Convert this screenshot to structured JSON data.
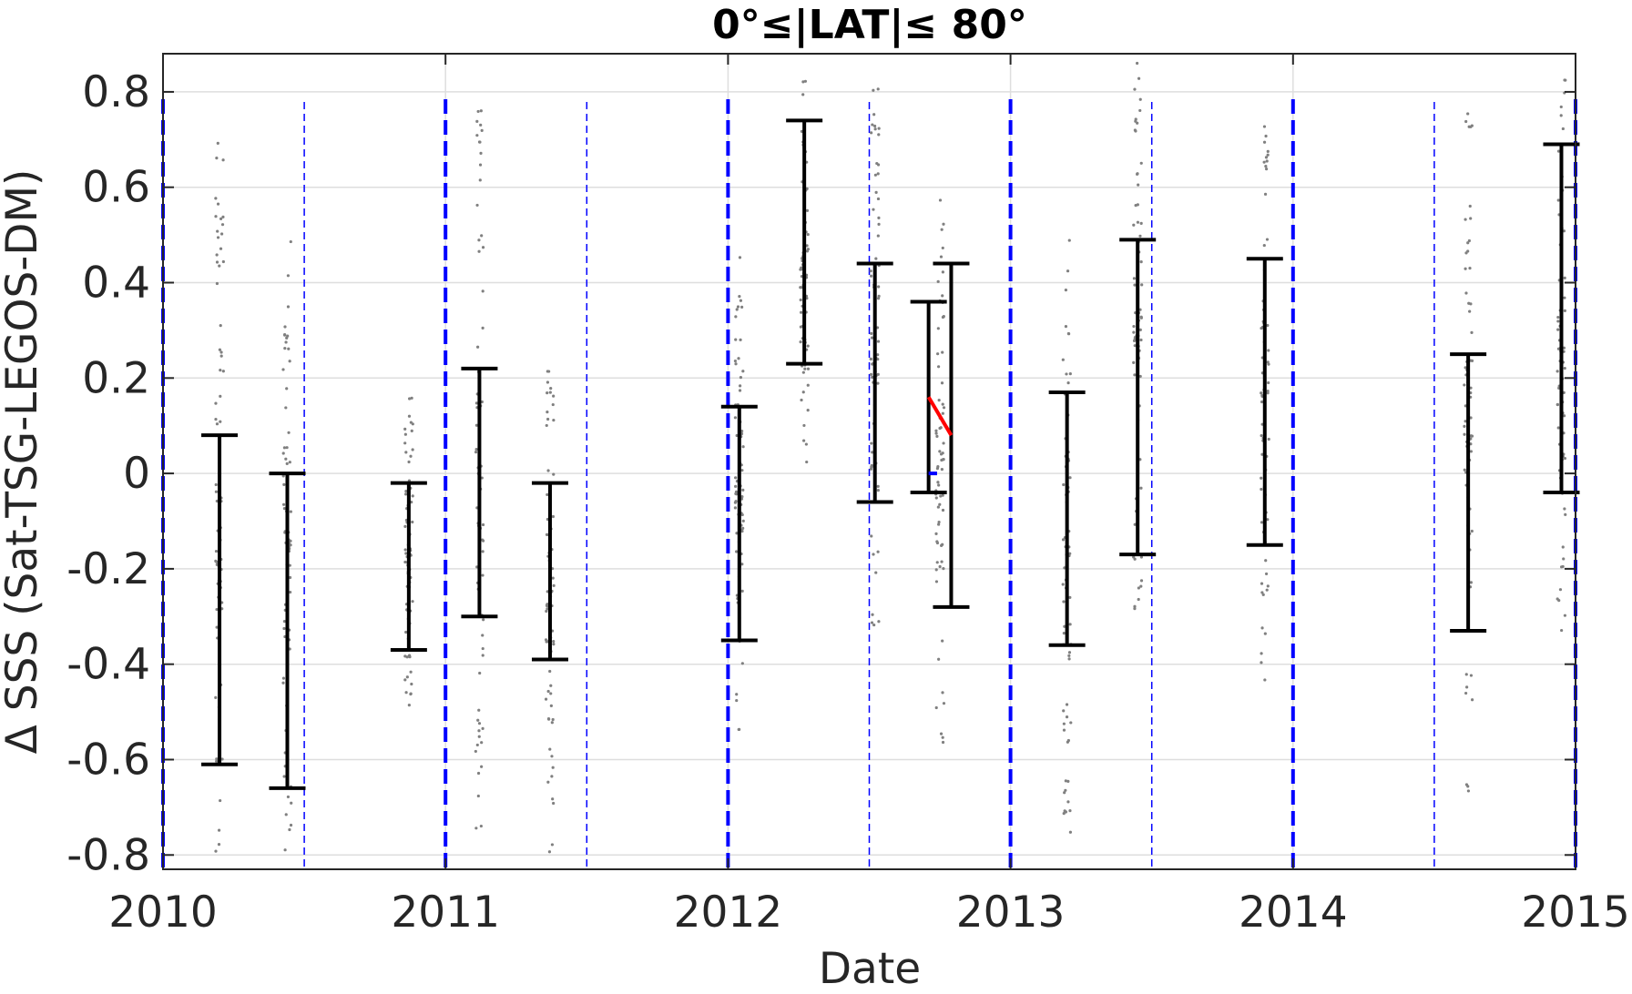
{
  "chart_data": {
    "type": "scatter",
    "title": "0°≤|LAT|≤ 80°",
    "xlabel": "Date",
    "ylabel": "Δ SSS (Sat-TSG-LEGOS-DM)",
    "xlim": [
      2010,
      2015
    ],
    "ylim": [
      -0.83,
      0.88
    ],
    "x_ticks": [
      "2010",
      "2011",
      "2012",
      "2013",
      "2014",
      "2015"
    ],
    "y_ticks": [
      "-0.8",
      "-0.6",
      "-0.4",
      "-0.2",
      "0",
      "0.2",
      "0.4",
      "0.6",
      "0.8"
    ],
    "grid": true,
    "year_lines": [
      2010,
      2011,
      2012,
      2013,
      2014,
      2015
    ],
    "half_year_lines": [
      2010.5,
      2011.5,
      2012.5,
      2013.5,
      2014.5
    ],
    "error_bars": [
      {
        "x": 2010.2,
        "low": -0.61,
        "high": 0.08
      },
      {
        "x": 2010.44,
        "low": -0.66,
        "high": 0.0
      },
      {
        "x": 2010.87,
        "low": -0.37,
        "high": -0.02
      },
      {
        "x": 2011.12,
        "low": -0.3,
        "high": 0.22
      },
      {
        "x": 2011.37,
        "low": -0.39,
        "high": -0.02
      },
      {
        "x": 2012.04,
        "low": -0.35,
        "high": 0.14
      },
      {
        "x": 2012.27,
        "low": 0.23,
        "high": 0.74
      },
      {
        "x": 2012.52,
        "low": -0.06,
        "high": 0.44
      },
      {
        "x": 2012.71,
        "low": -0.04,
        "high": 0.36
      },
      {
        "x": 2012.79,
        "low": -0.28,
        "high": 0.44
      },
      {
        "x": 2013.2,
        "low": -0.36,
        "high": 0.17
      },
      {
        "x": 2013.45,
        "low": -0.17,
        "high": 0.49
      },
      {
        "x": 2013.9,
        "low": -0.15,
        "high": 0.45
      },
      {
        "x": 2014.62,
        "low": -0.33,
        "high": 0.25
      },
      {
        "x": 2014.95,
        "low": -0.04,
        "high": 0.69
      }
    ],
    "point_clusters": [
      {
        "x": 2010.2,
        "min": -0.82,
        "max": 0.7
      },
      {
        "x": 2010.44,
        "min": -0.8,
        "max": 0.5
      },
      {
        "x": 2010.87,
        "min": -0.5,
        "max": 0.17
      },
      {
        "x": 2011.12,
        "min": -0.75,
        "max": 0.82
      },
      {
        "x": 2011.37,
        "min": -0.8,
        "max": 0.24
      },
      {
        "x": 2012.04,
        "min": -0.55,
        "max": 0.5
      },
      {
        "x": 2012.27,
        "min": 0.02,
        "max": 0.84
      },
      {
        "x": 2012.52,
        "min": -0.35,
        "max": 0.83
      },
      {
        "x": 2012.75,
        "min": -0.6,
        "max": 0.62
      },
      {
        "x": 2013.2,
        "min": -0.8,
        "max": 0.49
      },
      {
        "x": 2013.45,
        "min": -0.3,
        "max": 0.86
      },
      {
        "x": 2013.9,
        "min": -0.44,
        "max": 0.77
      },
      {
        "x": 2014.62,
        "min": -0.67,
        "max": 0.8
      },
      {
        "x": 2014.95,
        "min": -0.34,
        "max": 0.86
      }
    ],
    "trend_line": {
      "x": [
        2012.71,
        2012.79
      ],
      "y": [
        0.16,
        0.08
      ]
    },
    "zero_marker": {
      "x": [
        2012.71,
        2012.74
      ],
      "y": 0.0
    },
    "colors": {
      "points": "#808080",
      "error_bars": "#000000",
      "year_lines": "#0000ff",
      "trend_line": "#ff0000",
      "grid": "#dedede"
    }
  }
}
